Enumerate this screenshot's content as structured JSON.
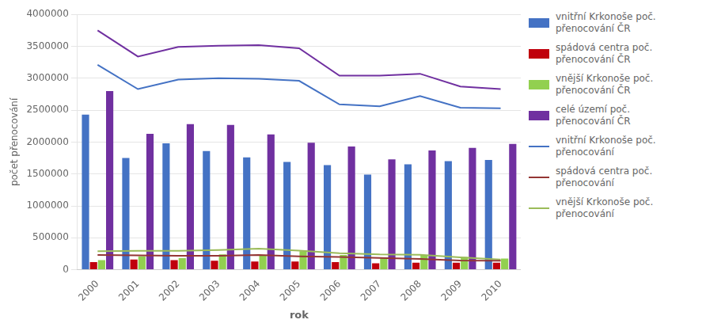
{
  "chart_data": {
    "type": "bar",
    "categories": [
      2000,
      2001,
      2002,
      2003,
      2004,
      2005,
      2006,
      2007,
      2008,
      2009,
      2010
    ],
    "series": [
      {
        "name": "vnitřní Krkonoše poč.\npřenocování ČR",
        "type": "bar",
        "color": "#4472c4",
        "values": [
          2430000,
          1750000,
          1980000,
          1860000,
          1760000,
          1690000,
          1640000,
          1490000,
          1650000,
          1700000,
          1720000
        ]
      },
      {
        "name": "spádová centra poč.\npřenocování ČR",
        "type": "bar",
        "color": "#c0000c",
        "values": [
          120000,
          160000,
          150000,
          140000,
          130000,
          130000,
          120000,
          100000,
          110000,
          110000,
          110000
        ]
      },
      {
        "name": "vnější Krkonoše poč.\npřenocování ČR",
        "type": "bar",
        "color": "#92d050",
        "values": [
          150000,
          210000,
          180000,
          240000,
          230000,
          290000,
          230000,
          190000,
          230000,
          200000,
          175000
        ]
      },
      {
        "name": "celé území poč.\npřenocování ČR",
        "type": "bar",
        "color": "#7030a0",
        "values": [
          2800000,
          2130000,
          2280000,
          2270000,
          2120000,
          1990000,
          1930000,
          1730000,
          1870000,
          1910000,
          1970000
        ]
      },
      {
        "type": "line",
        "color": "#7030a0",
        "values": [
          3750000,
          3340000,
          3490000,
          3510000,
          3520000,
          3470000,
          3040000,
          3040000,
          3070000,
          2870000,
          2830000
        ]
      },
      {
        "name": "vnitřní Krkonoše poč.\npřenocování",
        "type": "line",
        "color": "#4472c4",
        "values": [
          3210000,
          2830000,
          2980000,
          3000000,
          2990000,
          2960000,
          2590000,
          2560000,
          2720000,
          2540000,
          2530000
        ]
      },
      {
        "name": "spádová centra poč.\npřenocování",
        "type": "line",
        "color": "#943634",
        "values": [
          230000,
          225000,
          220000,
          220000,
          230000,
          210000,
          200000,
          185000,
          170000,
          145000,
          140000
        ]
      },
      {
        "name": "vnější Krkonoše poč.\npřenocování",
        "type": "line",
        "color": "#9bbb59",
        "values": [
          290000,
          295000,
          295000,
          310000,
          330000,
          300000,
          260000,
          240000,
          235000,
          195000,
          160000
        ]
      }
    ],
    "xlabel": "rok",
    "ylabel": "počet přenocování",
    "ylim": [
      0,
      4000000
    ],
    "yticks": [
      0,
      500000,
      1000000,
      1500000,
      2000000,
      2500000,
      3000000,
      3500000,
      4000000
    ],
    "grid": "y",
    "legend": "right"
  }
}
